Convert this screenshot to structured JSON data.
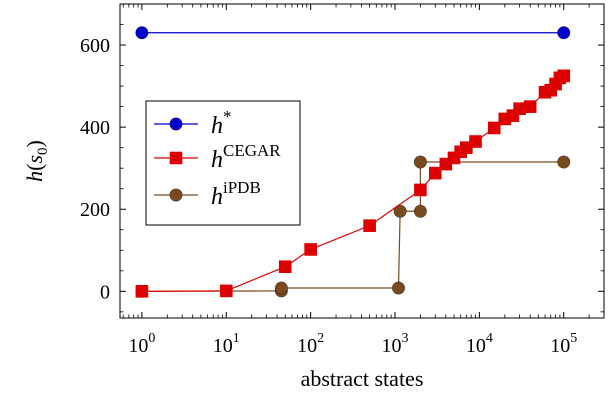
{
  "chart_data": {
    "type": "line",
    "xlabel": "abstract states",
    "ylabel_main": "h",
    "ylabel_sub": "0",
    "x_scale": "log",
    "xlim": [
      0.55,
      300000
    ],
    "ylim": [
      -65,
      700
    ],
    "x_ticks": [
      {
        "value": 1,
        "base": "10",
        "exp": "0"
      },
      {
        "value": 10,
        "base": "10",
        "exp": "1"
      },
      {
        "value": 100,
        "base": "10",
        "exp": "2"
      },
      {
        "value": 1000,
        "base": "10",
        "exp": "3"
      },
      {
        "value": 10000,
        "base": "10",
        "exp": "4"
      },
      {
        "value": 100000,
        "base": "10",
        "exp": "5"
      }
    ],
    "y_ticks": [
      {
        "value": 0,
        "label": "0"
      },
      {
        "value": 200,
        "label": "200"
      },
      {
        "value": 400,
        "label": "400"
      },
      {
        "value": 600,
        "label": "600"
      }
    ],
    "legend_position": "middle-left",
    "series": [
      {
        "key": "hstar",
        "legend_main": "h",
        "legend_sup": "*",
        "color": "#0000cc",
        "marker": "circle",
        "step": false,
        "points": [
          [
            1,
            630
          ],
          [
            100000,
            630
          ]
        ]
      },
      {
        "key": "cegar",
        "legend_main": "h",
        "legend_sup": "CEGAR",
        "color": "#dd0000",
        "marker": "square",
        "step": false,
        "points": [
          [
            1,
            0
          ],
          [
            10,
            1
          ],
          [
            50,
            60
          ],
          [
            100,
            102
          ],
          [
            500,
            160
          ],
          [
            2000,
            247
          ],
          [
            3000,
            288
          ],
          [
            4000,
            310
          ],
          [
            5000,
            325
          ],
          [
            6000,
            340
          ],
          [
            7000,
            350
          ],
          [
            9000,
            365
          ],
          [
            15000,
            398
          ],
          [
            20000,
            420
          ],
          [
            25000,
            428
          ],
          [
            30000,
            445
          ],
          [
            40000,
            450
          ],
          [
            60000,
            485
          ],
          [
            70000,
            490
          ],
          [
            80000,
            505
          ],
          [
            90000,
            520
          ],
          [
            100000,
            525
          ]
        ]
      },
      {
        "key": "ipdb",
        "legend_main": "h",
        "legend_sup": "iPDB",
        "color": "#7a4a1e",
        "marker": "circle",
        "step": true,
        "points": [
          [
            1,
            0
          ],
          [
            45,
            1
          ],
          [
            45,
            8
          ],
          [
            1100,
            8
          ],
          [
            1150,
            195
          ],
          [
            2000,
            195
          ],
          [
            2000,
            315
          ],
          [
            100000,
            315
          ]
        ]
      }
    ]
  }
}
